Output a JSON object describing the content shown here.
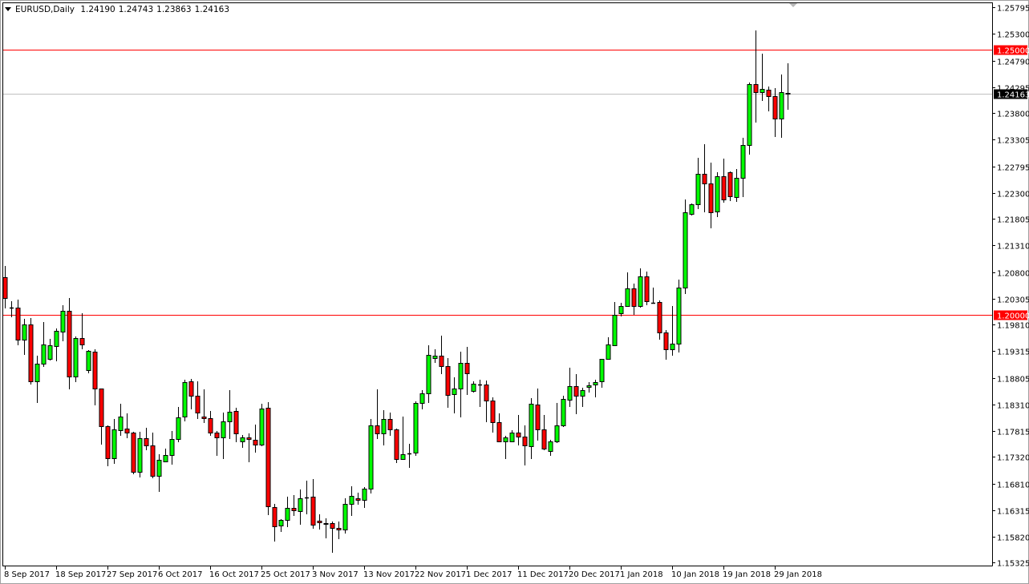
{
  "header": {
    "symbol": "EURUSD,Daily",
    "open": "1.24190",
    "high": "1.24743",
    "low": "1.23863",
    "close": "1.24163"
  },
  "colors": {
    "bull": "#00ff00",
    "bear": "#ff0000",
    "outline": "#000000",
    "level_line": "#ff0000",
    "price_line": "#c0c0c0",
    "price_label_bg": "#000000"
  },
  "chart_data": {
    "type": "candlestick",
    "title": "EURUSD,Daily",
    "xlabel": "",
    "ylabel": "",
    "ylim": [
      1.1531,
      1.2601
    ],
    "grid": false,
    "y_ticks": [
      "1.25795",
      "1.25300",
      "1.24790",
      "1.24295",
      "1.23800",
      "1.23305",
      "1.22795",
      "1.22300",
      "1.21805",
      "1.21310",
      "1.20800",
      "1.20305",
      "1.19810",
      "1.19315",
      "1.18805",
      "1.18310",
      "1.17815",
      "1.17320",
      "1.16810",
      "1.16315",
      "1.15820",
      "1.15325"
    ],
    "x_ticks": [
      {
        "date": "2017-09-08",
        "label": "8 Sep 2017"
      },
      {
        "date": "2017-09-18",
        "label": "18 Sep 2017"
      },
      {
        "date": "2017-09-27",
        "label": "27 Sep 2017"
      },
      {
        "date": "2017-10-06",
        "label": "6 Oct 2017"
      },
      {
        "date": "2017-10-16",
        "label": "16 Oct 2017"
      },
      {
        "date": "2017-10-25",
        "label": "25 Oct 2017"
      },
      {
        "date": "2017-11-03",
        "label": "3 Nov 2017"
      },
      {
        "date": "2017-11-13",
        "label": "13 Nov 2017"
      },
      {
        "date": "2017-11-22",
        "label": "22 Nov 2017"
      },
      {
        "date": "2017-12-01",
        "label": "1 Dec 2017"
      },
      {
        "date": "2017-12-11",
        "label": "11 Dec 2017"
      },
      {
        "date": "2017-12-20",
        "label": "20 Dec 2017"
      },
      {
        "date": "2018-01-01",
        "label": "1 Jan 2018"
      },
      {
        "date": "2018-01-10",
        "label": "10 Jan 2018"
      },
      {
        "date": "2018-01-19",
        "label": "19 Jan 2018"
      },
      {
        "date": "2018-01-29",
        "label": "29 Jan 2018"
      }
    ],
    "horizontal_lines": [
      {
        "price": 1.25,
        "label": "1.25000",
        "kind": "level"
      },
      {
        "price": 1.2,
        "label": "1.20000",
        "kind": "level"
      },
      {
        "price": 1.24163,
        "label": "1.24163",
        "kind": "current"
      }
    ],
    "candle_fields": [
      "date",
      "open",
      "high",
      "low",
      "close"
    ],
    "candles": [
      [
        "2017-09-08",
        1.2071,
        1.2092,
        1.2012,
        1.2032
      ],
      [
        "2017-09-10",
        1.2013,
        1.2026,
        1.1995,
        1.2014
      ],
      [
        "2017-09-11",
        1.2013,
        1.2029,
        1.1943,
        1.1953
      ],
      [
        "2017-09-12",
        1.1953,
        1.1992,
        1.1924,
        1.1982
      ],
      [
        "2017-09-13",
        1.1982,
        1.1994,
        1.1868,
        1.1875
      ],
      [
        "2017-09-14",
        1.1875,
        1.1923,
        1.1834,
        1.1908
      ],
      [
        "2017-09-15",
        1.1908,
        1.1986,
        1.1902,
        1.1944
      ],
      [
        "2017-09-17",
        1.1917,
        1.1955,
        1.1914,
        1.1943
      ],
      [
        "2017-09-18",
        1.1941,
        1.1974,
        1.1912,
        1.197
      ],
      [
        "2017-09-19",
        1.1968,
        1.2018,
        1.195,
        1.2007
      ],
      [
        "2017-09-20",
        1.2007,
        1.2032,
        1.1859,
        1.1884
      ],
      [
        "2017-09-21",
        1.1884,
        1.1959,
        1.1873,
        1.1956
      ],
      [
        "2017-09-22",
        1.1956,
        1.2003,
        1.1935,
        1.1944
      ],
      [
        "2017-09-24",
        1.1896,
        1.1933,
        1.189,
        1.1932
      ],
      [
        "2017-09-25",
        1.193,
        1.1935,
        1.1829,
        1.1861
      ],
      [
        "2017-09-26",
        1.1861,
        1.1861,
        1.1755,
        1.179
      ],
      [
        "2017-09-27",
        1.179,
        1.1791,
        1.1714,
        1.1729
      ],
      [
        "2017-09-28",
        1.1729,
        1.1803,
        1.1719,
        1.1784
      ],
      [
        "2017-09-29",
        1.1782,
        1.1832,
        1.1772,
        1.1808
      ],
      [
        "2017-10-01",
        1.1785,
        1.1814,
        1.1767,
        1.1778
      ],
      [
        "2017-10-02",
        1.1778,
        1.1779,
        1.1699,
        1.1704
      ],
      [
        "2017-10-03",
        1.1704,
        1.1779,
        1.1693,
        1.1767
      ],
      [
        "2017-10-04",
        1.1767,
        1.1787,
        1.1745,
        1.1754
      ],
      [
        "2017-10-05",
        1.1754,
        1.1778,
        1.1692,
        1.1696
      ],
      [
        "2017-10-06",
        1.1696,
        1.1737,
        1.1666,
        1.1726
      ],
      [
        "2017-10-08",
        1.1723,
        1.1748,
        1.1722,
        1.1735
      ],
      [
        "2017-10-09",
        1.1735,
        1.1781,
        1.1717,
        1.1766
      ],
      [
        "2017-10-10",
        1.1766,
        1.1826,
        1.176,
        1.1806
      ],
      [
        "2017-10-11",
        1.1808,
        1.1877,
        1.1799,
        1.1873
      ],
      [
        "2017-10-12",
        1.1875,
        1.1879,
        1.1822,
        1.1847
      ],
      [
        "2017-10-13",
        1.1847,
        1.1875,
        1.1803,
        1.1815
      ],
      [
        "2017-10-15",
        1.1808,
        1.1859,
        1.1796,
        1.1805
      ],
      [
        "2017-10-16",
        1.1805,
        1.1819,
        1.1772,
        1.1778
      ],
      [
        "2017-10-17",
        1.1778,
        1.1781,
        1.1734,
        1.1769
      ],
      [
        "2017-10-18",
        1.1769,
        1.1815,
        1.1728,
        1.1799
      ],
      [
        "2017-10-19",
        1.1799,
        1.1858,
        1.1766,
        1.1817
      ],
      [
        "2017-10-20",
        1.1819,
        1.1825,
        1.176,
        1.1776
      ],
      [
        "2017-10-22",
        1.1761,
        1.1773,
        1.1749,
        1.1769
      ],
      [
        "2017-10-23",
        1.1769,
        1.1776,
        1.1722,
        1.1766
      ],
      [
        "2017-10-24",
        1.1764,
        1.1793,
        1.174,
        1.1755
      ],
      [
        "2017-10-25",
        1.1755,
        1.1832,
        1.1752,
        1.1823
      ],
      [
        "2017-10-26",
        1.1825,
        1.1835,
        1.1622,
        1.1639
      ],
      [
        "2017-10-27",
        1.1637,
        1.1643,
        1.1572,
        1.1601
      ],
      [
        "2017-10-29",
        1.1603,
        1.1615,
        1.159,
        1.1613
      ],
      [
        "2017-10-30",
        1.1613,
        1.1657,
        1.16,
        1.1636
      ],
      [
        "2017-10-31",
        1.1636,
        1.166,
        1.1621,
        1.1631
      ],
      [
        "2017-11-01",
        1.163,
        1.167,
        1.1604,
        1.1654
      ],
      [
        "2017-11-02",
        1.1655,
        1.1687,
        1.1624,
        1.1656
      ],
      [
        "2017-11-03",
        1.1657,
        1.169,
        1.1596,
        1.1604
      ],
      [
        "2017-11-05",
        1.1612,
        1.1624,
        1.1595,
        1.1608
      ],
      [
        "2017-11-06",
        1.1607,
        1.1616,
        1.1578,
        1.1606
      ],
      [
        "2017-11-07",
        1.1607,
        1.161,
        1.1551,
        1.1598
      ],
      [
        "2017-11-08",
        1.1598,
        1.161,
        1.1577,
        1.1595
      ],
      [
        "2017-11-09",
        1.1595,
        1.1654,
        1.1587,
        1.1643
      ],
      [
        "2017-11-10",
        1.1643,
        1.1677,
        1.1621,
        1.1658
      ],
      [
        "2017-11-12",
        1.1654,
        1.1664,
        1.1642,
        1.1651
      ],
      [
        "2017-11-13",
        1.1651,
        1.1675,
        1.1636,
        1.1672
      ],
      [
        "2017-11-14",
        1.1672,
        1.1803,
        1.1663,
        1.1791
      ],
      [
        "2017-11-15",
        1.1791,
        1.1859,
        1.1766,
        1.1776
      ],
      [
        "2017-11-16",
        1.1776,
        1.182,
        1.1754,
        1.1803
      ],
      [
        "2017-11-17",
        1.1803,
        1.1815,
        1.1772,
        1.1784
      ],
      [
        "2017-11-19",
        1.1784,
        1.1785,
        1.172,
        1.1728
      ],
      [
        "2017-11-20",
        1.1728,
        1.1808,
        1.1726,
        1.1737
      ],
      [
        "2017-11-21",
        1.1738,
        1.1757,
        1.1711,
        1.1739
      ],
      [
        "2017-11-22",
        1.174,
        1.1837,
        1.1734,
        1.1834
      ],
      [
        "2017-11-23",
        1.1834,
        1.1858,
        1.1822,
        1.1852
      ],
      [
        "2017-11-24",
        1.1852,
        1.1943,
        1.1834,
        1.1924
      ],
      [
        "2017-11-26",
        1.1918,
        1.1935,
        1.1909,
        1.1923
      ],
      [
        "2017-11-27",
        1.1923,
        1.1961,
        1.1888,
        1.1903
      ],
      [
        "2017-11-28",
        1.1903,
        1.1918,
        1.1825,
        1.1849
      ],
      [
        "2017-11-29",
        1.185,
        1.1882,
        1.1814,
        1.1861
      ],
      [
        "2017-11-30",
        1.1861,
        1.193,
        1.1806,
        1.1909
      ],
      [
        "2017-12-01",
        1.1909,
        1.1939,
        1.1849,
        1.189
      ],
      [
        "2017-12-03",
        1.1856,
        1.1875,
        1.1853,
        1.187
      ],
      [
        "2017-12-04",
        1.1868,
        1.1877,
        1.1826,
        1.1869
      ],
      [
        "2017-12-05",
        1.1868,
        1.1876,
        1.1797,
        1.1838
      ],
      [
        "2017-12-06",
        1.1838,
        1.1844,
        1.1778,
        1.1797
      ],
      [
        "2017-12-07",
        1.1797,
        1.1814,
        1.176,
        1.1761
      ],
      [
        "2017-12-08",
        1.1761,
        1.1772,
        1.1728,
        1.1769
      ],
      [
        "2017-12-10",
        1.1761,
        1.1782,
        1.176,
        1.1778
      ],
      [
        "2017-12-11",
        1.1778,
        1.1811,
        1.1754,
        1.177
      ],
      [
        "2017-12-12",
        1.177,
        1.1791,
        1.1716,
        1.1754
      ],
      [
        "2017-12-13",
        1.1752,
        1.1843,
        1.1728,
        1.1832
      ],
      [
        "2017-12-14",
        1.1831,
        1.1861,
        1.1763,
        1.1784
      ],
      [
        "2017-12-15",
        1.1784,
        1.1811,
        1.1745,
        1.1748
      ],
      [
        "2017-12-17",
        1.1743,
        1.1764,
        1.1734,
        1.1761
      ],
      [
        "2017-12-18",
        1.1761,
        1.1834,
        1.1758,
        1.1791
      ],
      [
        "2017-12-19",
        1.1791,
        1.1847,
        1.1788,
        1.1841
      ],
      [
        "2017-12-20",
        1.184,
        1.19,
        1.1826,
        1.1865
      ],
      [
        "2017-12-21",
        1.1865,
        1.1888,
        1.1812,
        1.1847
      ],
      [
        "2017-12-22",
        1.1847,
        1.1862,
        1.1826,
        1.1858
      ],
      [
        "2017-12-25",
        1.1864,
        1.1873,
        1.1853,
        1.1867
      ],
      [
        "2017-12-26",
        1.1868,
        1.1877,
        1.1844,
        1.1873
      ],
      [
        "2017-12-27",
        1.1875,
        1.1917,
        1.1862,
        1.1917
      ],
      [
        "2017-12-28",
        1.1917,
        1.1958,
        1.1915,
        1.1944
      ],
      [
        "2017-12-29",
        1.1942,
        1.2024,
        1.1942,
        1.2
      ],
      [
        "2018-01-01",
        1.2003,
        1.2023,
        1.1997,
        1.2017
      ],
      [
        "2018-01-02",
        1.2017,
        1.208,
        1.2015,
        1.205
      ],
      [
        "2018-01-03",
        1.205,
        1.2059,
        1.2,
        1.2017
      ],
      [
        "2018-01-04",
        1.2017,
        1.2088,
        1.2013,
        1.2072
      ],
      [
        "2018-01-05",
        1.2072,
        1.2081,
        1.2018,
        1.2026
      ],
      [
        "2018-01-07",
        1.2023,
        1.2051,
        1.2022,
        1.2022
      ],
      [
        "2018-01-08",
        1.2024,
        1.2027,
        1.1953,
        1.1967
      ],
      [
        "2018-01-09",
        1.1967,
        1.1971,
        1.1915,
        1.1935
      ],
      [
        "2018-01-10",
        1.1935,
        1.2017,
        1.1923,
        1.1946
      ],
      [
        "2018-01-11",
        1.1946,
        1.2066,
        1.1929,
        1.2051
      ],
      [
        "2018-01-12",
        1.2051,
        1.2218,
        1.2039,
        1.2193
      ],
      [
        "2018-01-14",
        1.219,
        1.221,
        1.2187,
        1.2208
      ],
      [
        "2018-01-15",
        1.2208,
        1.2296,
        1.2199,
        1.2266
      ],
      [
        "2018-01-16",
        1.2266,
        1.2322,
        1.2193,
        1.2248
      ],
      [
        "2018-01-17",
        1.2248,
        1.2287,
        1.2163,
        1.2193
      ],
      [
        "2018-01-18",
        1.2195,
        1.2269,
        1.2184,
        1.2261
      ],
      [
        "2018-01-19",
        1.2261,
        1.2295,
        1.2211,
        1.2217
      ],
      [
        "2018-01-21",
        1.2269,
        1.227,
        1.2214,
        1.2224
      ],
      [
        "2018-01-22",
        1.2222,
        1.2275,
        1.2213,
        1.2258
      ],
      [
        "2018-01-23",
        1.2258,
        1.2334,
        1.2222,
        1.232
      ],
      [
        "2018-01-24",
        1.232,
        1.2438,
        1.2302,
        1.2435
      ],
      [
        "2018-01-25",
        1.2435,
        1.2536,
        1.2363,
        1.242
      ],
      [
        "2018-01-26",
        1.242,
        1.2492,
        1.2403,
        1.2426
      ],
      [
        "2018-01-28",
        1.2425,
        1.2431,
        1.2384,
        1.2412
      ],
      [
        "2018-01-29",
        1.2412,
        1.2428,
        1.2335,
        1.237
      ],
      [
        "2018-01-30",
        1.237,
        1.2453,
        1.2334,
        1.242
      ],
      [
        "2018-01-31",
        1.2419,
        1.24743,
        1.23863,
        1.24163
      ]
    ]
  }
}
